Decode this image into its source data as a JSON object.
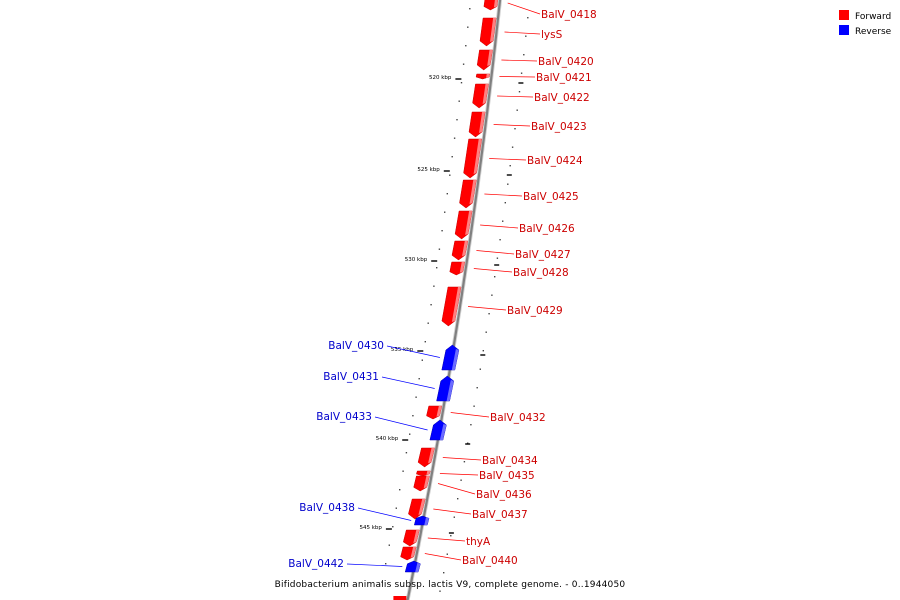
{
  "caption": "Bifidobacterium animalis subsp. lactis V9, complete genome. - 0..1944050",
  "legend": [
    {
      "label": "Forward",
      "color": "#ff0000"
    },
    {
      "label": "Reverse",
      "color": "#0000ff"
    }
  ],
  "ticks": [
    "520 kbp",
    "525 kbp",
    "530 kbp",
    "535 kbp",
    "540 kbp",
    "545 kbp"
  ],
  "genes": [
    {
      "name": "BalV_0418",
      "strand": "forward"
    },
    {
      "name": "lysS",
      "strand": "forward"
    },
    {
      "name": "BalV_0420",
      "strand": "forward"
    },
    {
      "name": "BalV_0421",
      "strand": "forward"
    },
    {
      "name": "BalV_0422",
      "strand": "forward"
    },
    {
      "name": "BalV_0423",
      "strand": "forward"
    },
    {
      "name": "BalV_0424",
      "strand": "forward"
    },
    {
      "name": "BalV_0425",
      "strand": "forward"
    },
    {
      "name": "BalV_0426",
      "strand": "forward"
    },
    {
      "name": "BalV_0427",
      "strand": "forward"
    },
    {
      "name": "BalV_0428",
      "strand": "forward"
    },
    {
      "name": "BalV_0429",
      "strand": "forward"
    },
    {
      "name": "BalV_0430",
      "strand": "reverse"
    },
    {
      "name": "BalV_0431",
      "strand": "reverse"
    },
    {
      "name": "BalV_0432",
      "strand": "forward"
    },
    {
      "name": "BalV_0433",
      "strand": "reverse"
    },
    {
      "name": "BalV_0434",
      "strand": "forward"
    },
    {
      "name": "BalV_0435",
      "strand": "forward"
    },
    {
      "name": "BalV_0436",
      "strand": "forward"
    },
    {
      "name": "BalV_0437",
      "strand": "forward"
    },
    {
      "name": "BalV_0438",
      "strand": "reverse"
    },
    {
      "name": "thyA",
      "strand": "forward"
    },
    {
      "name": "BalV_0440",
      "strand": "forward"
    },
    {
      "name": "BalV_0442",
      "strand": "reverse"
    }
  ]
}
